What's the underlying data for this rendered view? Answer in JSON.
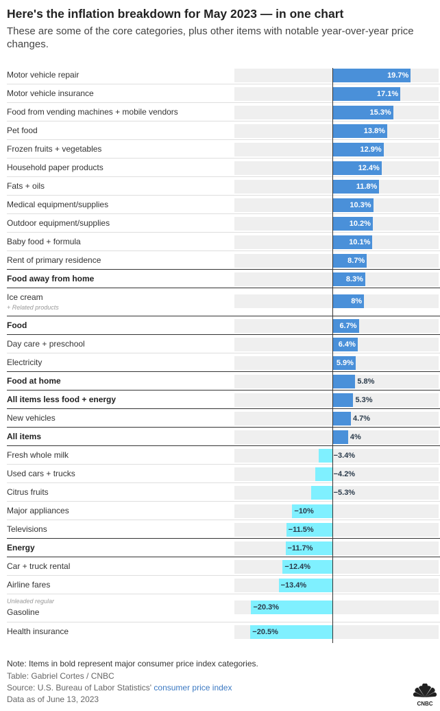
{
  "header": {
    "title": "Here's the inflation breakdown for May 2023 — in one chart",
    "subtitle": "These are some of the core categories, plus other items with notable year-over-year price changes."
  },
  "chart_data": {
    "type": "bar",
    "orientation": "horizontal",
    "unit": "%",
    "colors": {
      "positive": "#4a90d9",
      "negative": "#7ff0ff",
      "track": "#efefef"
    },
    "rows": [
      {
        "label": "Motor vehicle repair",
        "value": 19.7,
        "display": "19.7%",
        "bold": false
      },
      {
        "label": "Motor vehicle insurance",
        "value": 17.1,
        "display": "17.1%",
        "bold": false
      },
      {
        "label": "Food from vending machines + mobile vendors",
        "value": 15.3,
        "display": "15.3%",
        "bold": false
      },
      {
        "label": "Pet food",
        "value": 13.8,
        "display": "13.8%",
        "bold": false
      },
      {
        "label": "Frozen fruits + vegetables",
        "value": 12.9,
        "display": "12.9%",
        "bold": false
      },
      {
        "label": "Household paper products",
        "value": 12.4,
        "display": "12.4%",
        "bold": false
      },
      {
        "label": "Fats + oils",
        "value": 11.8,
        "display": "11.8%",
        "bold": false
      },
      {
        "label": "Medical equipment/supplies",
        "value": 10.3,
        "display": "10.3%",
        "bold": false
      },
      {
        "label": "Outdoor equipment/supplies",
        "value": 10.2,
        "display": "10.2%",
        "bold": false
      },
      {
        "label": "Baby food + formula",
        "value": 10.1,
        "display": "10.1%",
        "bold": false
      },
      {
        "label": "Rent of primary residence",
        "value": 8.7,
        "display": "8.7%",
        "bold": false
      },
      {
        "label": "Food away from home",
        "value": 8.3,
        "display": "8.3%",
        "bold": true
      },
      {
        "label": "Ice cream",
        "value": 8,
        "display": "8%",
        "bold": false,
        "sublabel": "+ Related products",
        "sublabel_position": "below"
      },
      {
        "label": "Food",
        "value": 6.7,
        "display": "6.7%",
        "bold": true
      },
      {
        "label": "Day care + preschool",
        "value": 6.4,
        "display": "6.4%",
        "bold": false
      },
      {
        "label": "Electricity",
        "value": 5.9,
        "display": "5.9%",
        "bold": false
      },
      {
        "label": "Food at home",
        "value": 5.8,
        "display": "5.8%",
        "bold": true
      },
      {
        "label": "All items less food + energy",
        "value": 5.3,
        "display": "5.3%",
        "bold": true
      },
      {
        "label": "New vehicles",
        "value": 4.7,
        "display": "4.7%",
        "bold": false
      },
      {
        "label": "All items",
        "value": 4,
        "display": "4%",
        "bold": true
      },
      {
        "label": "Fresh whole milk",
        "value": -3.4,
        "display": "−3.4%",
        "bold": false
      },
      {
        "label": "Used cars + trucks",
        "value": -4.2,
        "display": "−4.2%",
        "bold": false
      },
      {
        "label": "Citrus fruits",
        "value": -5.3,
        "display": "−5.3%",
        "bold": false
      },
      {
        "label": "Major appliances",
        "value": -10,
        "display": "−10%",
        "bold": false
      },
      {
        "label": "Televisions",
        "value": -11.5,
        "display": "−11.5%",
        "bold": false
      },
      {
        "label": "Energy",
        "value": -11.7,
        "display": "−11.7%",
        "bold": true
      },
      {
        "label": "Car + truck rental",
        "value": -12.4,
        "display": "−12.4%",
        "bold": false
      },
      {
        "label": "Airline fares",
        "value": -13.4,
        "display": "−13.4%",
        "bold": false
      },
      {
        "label": "Gasoline",
        "value": -20.3,
        "display": "−20.3%",
        "bold": false,
        "sublabel": "Unleaded regular",
        "sublabel_position": "above"
      },
      {
        "label": "Health insurance",
        "value": -20.5,
        "display": "−20.5%",
        "bold": false
      }
    ],
    "xlim": [
      -24.5,
      26.7
    ]
  },
  "footer": {
    "note": "Note: Items in bold represent major consumer price index categories.",
    "credit": "Table: Gabriel Cortes / CNBC",
    "source_prefix": "Source: U.S. Bureau of Labor Statistics' ",
    "source_link": "consumer price index",
    "date": "Data as of June 13, 2023",
    "logo_text": "CNBC"
  }
}
